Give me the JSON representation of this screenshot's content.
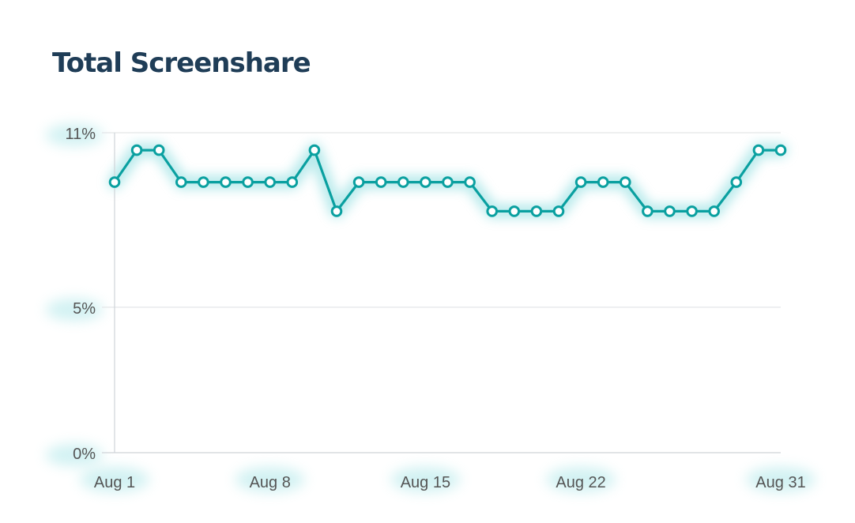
{
  "title": "Total Screenshare",
  "colors": {
    "line": "#0aa0a0",
    "glow": "#7fd9dc",
    "title": "#1f3d57",
    "grid": "#e3e6e8",
    "axis": "#cfd4d8",
    "tick_text": "#555555"
  },
  "chart_data": {
    "type": "line",
    "title": "Total Screenshare",
    "xlabel": "",
    "ylabel": "",
    "x": [
      "Aug 1",
      "Aug 2",
      "Aug 3",
      "Aug 4",
      "Aug 5",
      "Aug 6",
      "Aug 7",
      "Aug 8",
      "Aug 9",
      "Aug 10",
      "Aug 11",
      "Aug 12",
      "Aug 13",
      "Aug 14",
      "Aug 15",
      "Aug 16",
      "Aug 17",
      "Aug 18",
      "Aug 19",
      "Aug 20",
      "Aug 21",
      "Aug 22",
      "Aug 23",
      "Aug 24",
      "Aug 25",
      "Aug 26",
      "Aug 27",
      "Aug 28",
      "Aug 29",
      "Aug 30",
      "Aug 31"
    ],
    "series": [
      {
        "values": [
          9.3,
          10.4,
          10.4,
          9.3,
          9.3,
          9.3,
          9.3,
          9.3,
          9.3,
          10.4,
          8.3,
          9.3,
          9.3,
          9.3,
          9.3,
          9.3,
          9.3,
          8.3,
          8.3,
          8.3,
          8.3,
          9.3,
          9.3,
          9.3,
          8.3,
          8.3,
          8.3,
          8.3,
          9.3,
          10.4,
          10.4
        ]
      }
    ],
    "x_tick_labels": [
      "Aug 1",
      "Aug 8",
      "Aug 15",
      "Aug 22",
      "Aug 31"
    ],
    "x_tick_days": [
      1,
      8,
      15,
      22,
      31
    ],
    "y_ticks": [
      0,
      5,
      11
    ],
    "y_tick_labels": [
      "0%",
      "5%",
      "11%"
    ],
    "ylim": [
      0,
      11
    ],
    "grid": "horizontal",
    "legend": "none",
    "markers": "hollow circles"
  }
}
